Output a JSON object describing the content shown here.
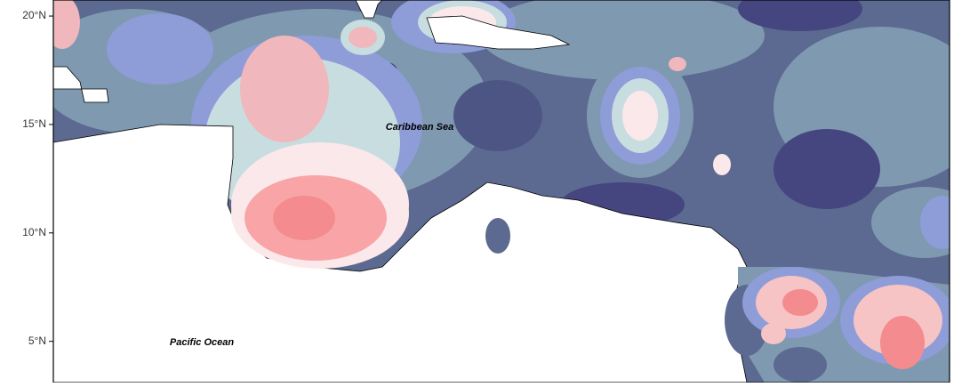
{
  "map": {
    "ylim": [
      3.1,
      20.74
    ],
    "yticks": [
      {
        "value": 20,
        "label": "20°N"
      },
      {
        "value": 15,
        "label": "15°N"
      },
      {
        "value": 10,
        "label": "10°N"
      },
      {
        "value": 5,
        "label": "5°N"
      }
    ],
    "labels": [
      "Caribbean Sea",
      "Pacific Ocean"
    ]
  }
}
